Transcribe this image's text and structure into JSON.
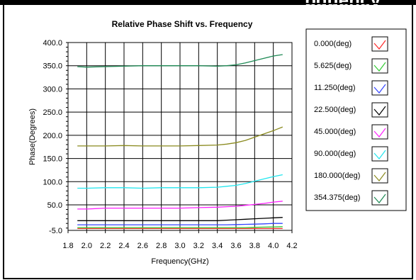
{
  "header_fragment": "pquency",
  "chart_data": {
    "type": "line",
    "title": "Relative Phase Shift vs. Frequency",
    "xlabel": "Frequency(GHz)",
    "ylabel": "Phase(Degrees)",
    "xlim": [
      1.8,
      4.2
    ],
    "ylim": [
      -5.0,
      400.0
    ],
    "xticks": [
      "1.8",
      "2.0",
      "2.2",
      "2.4",
      "2.6",
      "2.8",
      "3.0",
      "3.2",
      "3.4",
      "3.6",
      "3.8",
      "4.0",
      "4.2"
    ],
    "xtick_values": [
      1.8,
      2.0,
      2.2,
      2.4,
      2.6,
      2.8,
      3.0,
      3.2,
      3.4,
      3.6,
      3.8,
      4.0,
      4.2
    ],
    "yticks": [
      "400.0",
      "350.0",
      "300.0",
      "250.0",
      "200.0",
      "150.0",
      "100.0",
      "50.0",
      "-5.0"
    ],
    "ytick_values": [
      400,
      350,
      300,
      250,
      200,
      150,
      100,
      50,
      -5
    ],
    "grid": true,
    "legend_position": "right",
    "x": [
      1.9,
      2.0,
      2.2,
      2.4,
      2.6,
      2.8,
      3.0,
      3.2,
      3.4,
      3.5,
      3.6,
      3.7,
      3.8,
      3.9,
      4.0,
      4.1
    ],
    "series": [
      {
        "name": "0.000(deg)",
        "color": "#ff2a2a",
        "values": [
          -1,
          -1,
          -1,
          -1,
          -1,
          -1,
          -1,
          -1,
          -1,
          -1,
          -1,
          -1,
          -1,
          -1,
          -1,
          -1
        ]
      },
      {
        "name": "5.625(deg)",
        "color": "#33cc33",
        "values": [
          1,
          1,
          1,
          1,
          1,
          1,
          1,
          1,
          1,
          1,
          1,
          1,
          1.5,
          2,
          2.5,
          3
        ]
      },
      {
        "name": "11.250(deg)",
        "color": "#3344ff",
        "values": [
          7,
          7,
          7,
          7,
          7,
          7,
          7,
          7,
          7,
          7,
          7.5,
          8,
          8.5,
          9,
          10,
          10
        ]
      },
      {
        "name": "22.500(deg)",
        "color": "#000000",
        "values": [
          16,
          16,
          16,
          16,
          16,
          16,
          16,
          16,
          16,
          17,
          18,
          19,
          20,
          21,
          22,
          23
        ]
      },
      {
        "name": "45.000(deg)",
        "color": "#ff22ff",
        "values": [
          41,
          41,
          43,
          43,
          43,
          43,
          43,
          44,
          45,
          46,
          47,
          49,
          51,
          53,
          56,
          58
        ]
      },
      {
        "name": "90.000(deg)",
        "color": "#22e6ee",
        "values": [
          86,
          86,
          87,
          87,
          86,
          87,
          87,
          87,
          88,
          90,
          92,
          96,
          101,
          106,
          111,
          115
        ]
      },
      {
        "name": "180.000(deg)",
        "color": "#8a8a1e",
        "values": [
          177,
          177,
          177,
          178,
          177,
          177,
          177,
          178,
          179,
          181,
          184,
          189,
          196,
          203,
          210,
          218
        ]
      },
      {
        "name": "354.375(deg)",
        "color": "#1e8a55",
        "values": [
          348,
          347,
          348,
          349,
          350,
          350,
          350,
          350,
          349,
          350,
          352,
          356,
          361,
          366,
          371,
          374
        ]
      }
    ]
  }
}
